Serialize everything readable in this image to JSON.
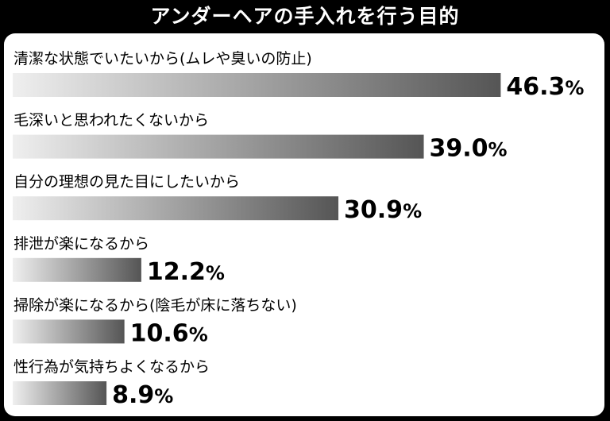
{
  "chart_data": {
    "type": "bar",
    "orientation": "horizontal",
    "title": "アンダーヘアの手入れを行う目的",
    "unit": "%",
    "categories": [
      "清潔な状態でいたいから(ムレや臭いの防止)",
      "毛深いと思われたくないから",
      "自分の理想の見た目にしたいから",
      "排泄が楽になるから",
      "掃除が楽になるから(陰毛が床に落ちない)",
      "性行為が気持ちよくなるから"
    ],
    "values": [
      46.3,
      39.0,
      30.9,
      12.2,
      10.6,
      8.9
    ],
    "value_labels": [
      "46.3",
      "39.0",
      "30.9",
      "12.2",
      "10.6",
      "8.9"
    ],
    "xlim": [
      0,
      50
    ],
    "grid": false,
    "legend": "none",
    "bar_gradient": [
      "#efefef",
      "#555555"
    ]
  }
}
